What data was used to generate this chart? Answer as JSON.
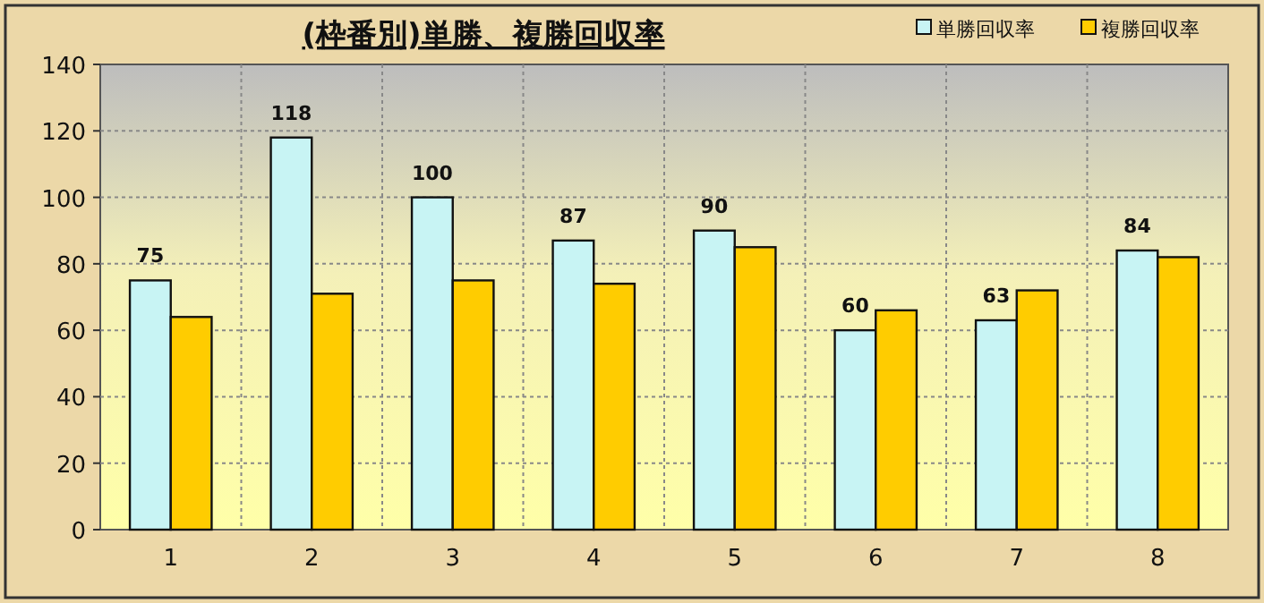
{
  "chart_data": {
    "type": "bar",
    "title": "(枠番別)単勝、複勝回収率",
    "categories": [
      "1",
      "2",
      "3",
      "4",
      "5",
      "6",
      "7",
      "8"
    ],
    "series": [
      {
        "name": "単勝回収率",
        "color": "#c8f4f4",
        "values": [
          75,
          118,
          100,
          87,
          90,
          60,
          63,
          84
        ],
        "value_labels": [
          "75",
          "118",
          "100",
          "87",
          "90",
          "60",
          "63",
          "84"
        ]
      },
      {
        "name": "複勝回収率",
        "color": "#ffcc00",
        "values": [
          64,
          71,
          75,
          74,
          85,
          66,
          72,
          82
        ]
      }
    ],
    "ylim": [
      0,
      140
    ],
    "yticks": [
      0,
      20,
      40,
      60,
      80,
      100,
      120,
      140
    ],
    "grid": true,
    "legend": "top right"
  }
}
